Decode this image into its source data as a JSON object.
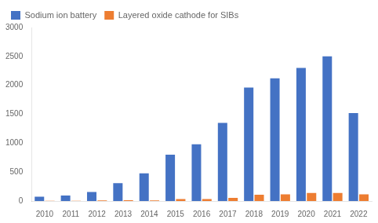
{
  "chart_data": {
    "type": "bar",
    "categories": [
      "2010",
      "2011",
      "2012",
      "2013",
      "2014",
      "2015",
      "2016",
      "2017",
      "2018",
      "2019",
      "2020",
      "2021",
      "2022"
    ],
    "series": [
      {
        "name": "Sodium ion battery",
        "color": "#4472c4",
        "values": [
          75,
          95,
          155,
          310,
          480,
          800,
          980,
          1350,
          1960,
          2120,
          2300,
          2500,
          1520
        ]
      },
      {
        "name": "Layered oxide cathode for SIBs",
        "color": "#ed7d31",
        "values": [
          5,
          5,
          10,
          15,
          10,
          35,
          35,
          55,
          110,
          115,
          140,
          140,
          115
        ]
      }
    ],
    "ylim": [
      0,
      3000
    ],
    "yticks": [
      0,
      500,
      1000,
      1500,
      2000,
      2500,
      3000
    ],
    "grid": false,
    "legend": "upper left"
  }
}
